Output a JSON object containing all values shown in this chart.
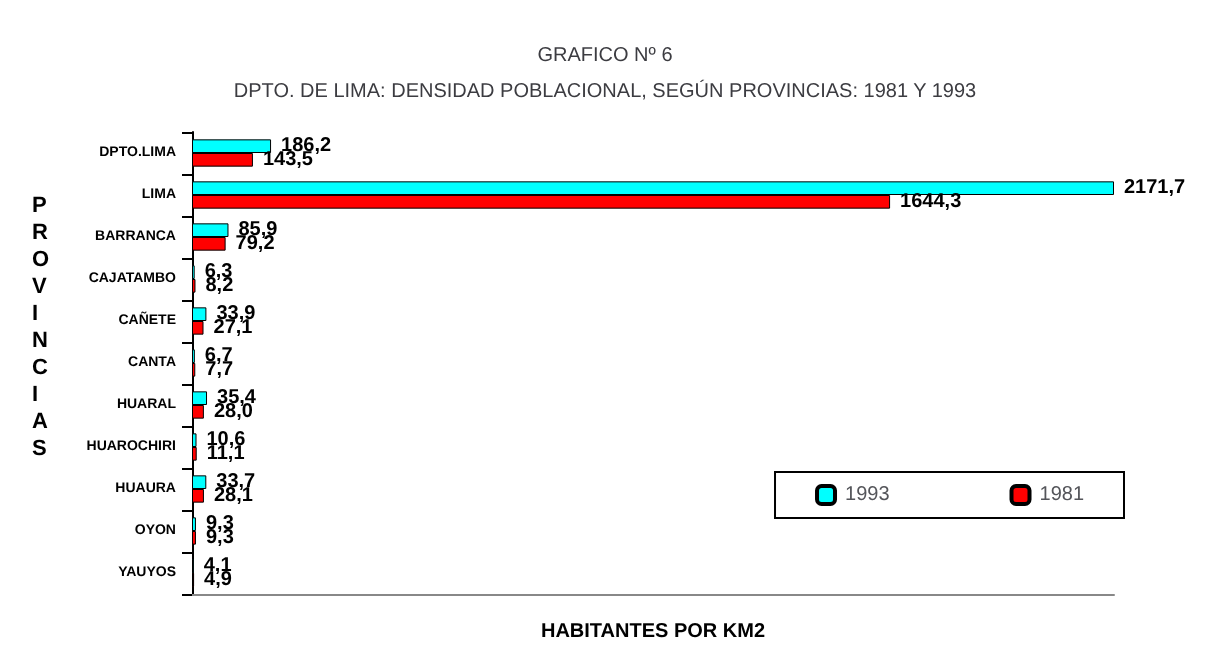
{
  "chart_data": {
    "type": "bar",
    "orientation": "horizontal",
    "title": "GRAFICO Nº 6",
    "subtitle": "DPTO. DE LIMA: DENSIDAD POBLACIONAL, SEGÚN PROVINCIAS: 1981 Y 1993",
    "xlabel": "HABITANTES POR KM2",
    "ylabel": "PROVINCIAS",
    "categories": [
      "DPTO.LIMA",
      "LIMA",
      "BARRANCA",
      "CAJATAMBO",
      "CAÑETE",
      "CANTA",
      "HUARAL",
      "HUAROCHIRI",
      "HUAURA",
      "OYON",
      "YAUYOS"
    ],
    "series": [
      {
        "name": "1993",
        "color": "#00ffff",
        "values": [
          186.2,
          2171.7,
          85.9,
          6.3,
          33.9,
          6.7,
          35.4,
          10.6,
          33.7,
          9.3,
          4.1
        ],
        "value_labels": [
          "186,2",
          "2171,7",
          "85,9",
          "6,3",
          "33,9",
          "6,7",
          "35,4",
          "10,6",
          "33,7",
          "9,3",
          "4,1"
        ]
      },
      {
        "name": "1981",
        "color": "#ff0000",
        "values": [
          143.5,
          1644.3,
          79.2,
          8.2,
          27.1,
          7.7,
          28.0,
          11.1,
          28.1,
          9.3,
          4.9
        ],
        "value_labels": [
          "143,5",
          "1644,3",
          "79,2",
          "8,2",
          "27,1",
          "7,7",
          "28,0",
          "11,1",
          "28,1",
          "9,3",
          "4,9"
        ]
      }
    ],
    "legend": "bottom right",
    "grid": false,
    "tick_labels": "y"
  }
}
